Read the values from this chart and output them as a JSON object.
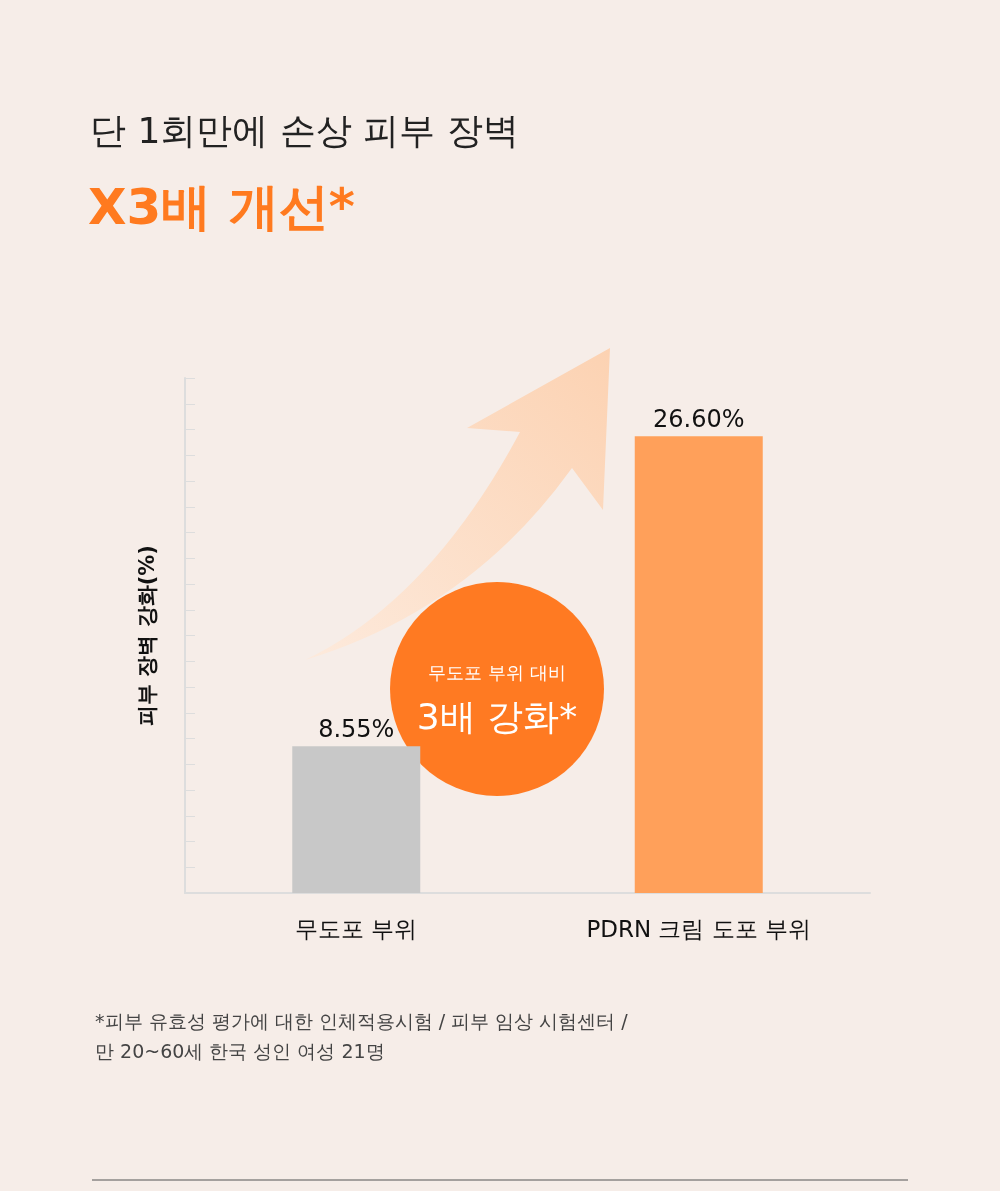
{
  "chart_data": {
    "type": "bar",
    "title": "단 1회만에 손상 피부 장벽",
    "subtitle": "X3배 개선*",
    "ylabel": "피부 장벽 강화(%)",
    "categories": [
      "무도포 부위",
      "PDRN 크림 도포 부위"
    ],
    "values": [
      8.55,
      26.6
    ],
    "colors": [
      "#c8c8c8",
      "#ffa05a"
    ],
    "value_labels": [
      "8.55%",
      "26.60%"
    ],
    "ylim": [
      0,
      30
    ],
    "yticks": [
      {
        "value": 0,
        "label": null
      },
      {
        "value": 1.5,
        "label": null
      },
      {
        "value": 3,
        "label": null
      },
      {
        "value": 4.5,
        "label": null
      },
      {
        "value": 6,
        "label": null
      },
      {
        "value": 7.5,
        "label": null
      },
      {
        "value": 9,
        "label": null
      },
      {
        "value": 10.5,
        "label": null
      },
      {
        "value": 12,
        "label": null
      },
      {
        "value": 13.5,
        "label": null
      },
      {
        "value": 15,
        "label": null
      },
      {
        "value": 16.5,
        "label": null
      },
      {
        "value": 18,
        "label": null
      },
      {
        "value": 19.5,
        "label": null
      },
      {
        "value": 21,
        "label": null
      },
      {
        "value": 22.5,
        "label": null
      },
      {
        "value": 24,
        "label": null
      },
      {
        "value": 25.5,
        "label": null
      },
      {
        "value": 27,
        "label": null
      },
      {
        "value": 28.5,
        "label": null
      },
      {
        "value": 30,
        "label": null
      }
    ],
    "tick_labels": "x",
    "grid": false,
    "annotations": [
      "무도포 부위 대비",
      "3배 강화*",
      "*피부 유효성 평가에 대한 인체적용시험 / 피부 임상 시험센터 /\n만 20~60세 한국 성인 여성 21명"
    ]
  }
}
